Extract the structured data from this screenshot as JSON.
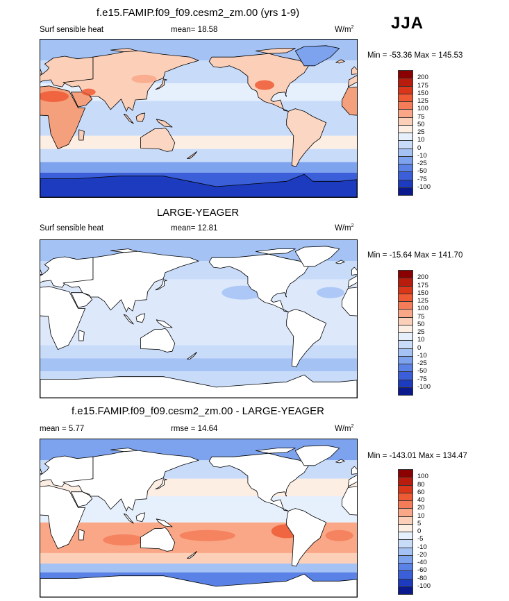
{
  "season": "JJA",
  "panels": [
    {
      "id": "p1",
      "title": "f.e15.FAMIP.f09_f09.cesm2_zm.00 (yrs 1-9)",
      "left_label": "Surf sensible heat",
      "center_label": "mean=  18.58",
      "units_base": "W/m",
      "units_exp": "2",
      "minmax": "Min = -53.36 Max = 145.53",
      "mode": "model",
      "levels": [
        "200",
        "175",
        "150",
        "125",
        "100",
        "75",
        "50",
        "25",
        "10",
        "0",
        "-10",
        "-25",
        "-50",
        "-75",
        "-100"
      ]
    },
    {
      "id": "p2",
      "title": "LARGE-YEAGER",
      "left_label": "Surf sensible heat",
      "center_label": "mean=  12.81",
      "units_base": "W/m",
      "units_exp": "2",
      "minmax": "Min = -15.64 Max = 141.70",
      "mode": "obs",
      "levels": [
        "200",
        "175",
        "150",
        "125",
        "100",
        "75",
        "50",
        "25",
        "10",
        "0",
        "-10",
        "-25",
        "-50",
        "-75",
        "-100"
      ]
    },
    {
      "id": "p3",
      "title": "f.e15.FAMIP.f09_f09.cesm2_zm.00 - LARGE-YEAGER",
      "left_label": "mean =   5.77",
      "center_label": "rmse =  14.64",
      "units_base": "W/m",
      "units_exp": "2",
      "minmax": "Min = -143.01 Max = 134.47",
      "mode": "diff",
      "levels": [
        "100",
        "80",
        "60",
        "40",
        "20",
        "10",
        "5",
        "0",
        "-5",
        "-10",
        "-20",
        "-40",
        "-60",
        "-80",
        "-100"
      ]
    }
  ],
  "colors": {
    "ramp": [
      "#8b0000",
      "#b81c0c",
      "#d9361a",
      "#ee5a34",
      "#f47c58",
      "#f9a787",
      "#fbcfb8",
      "#fdeee4",
      "#e6effc",
      "#c8dcfa",
      "#a4c2f4",
      "#7ea3ee",
      "#5a82e6",
      "#3a5fd8",
      "#1c3bbf",
      "#0a1a8c"
    ],
    "land": "#ffffff",
    "coast": "#000000"
  }
}
